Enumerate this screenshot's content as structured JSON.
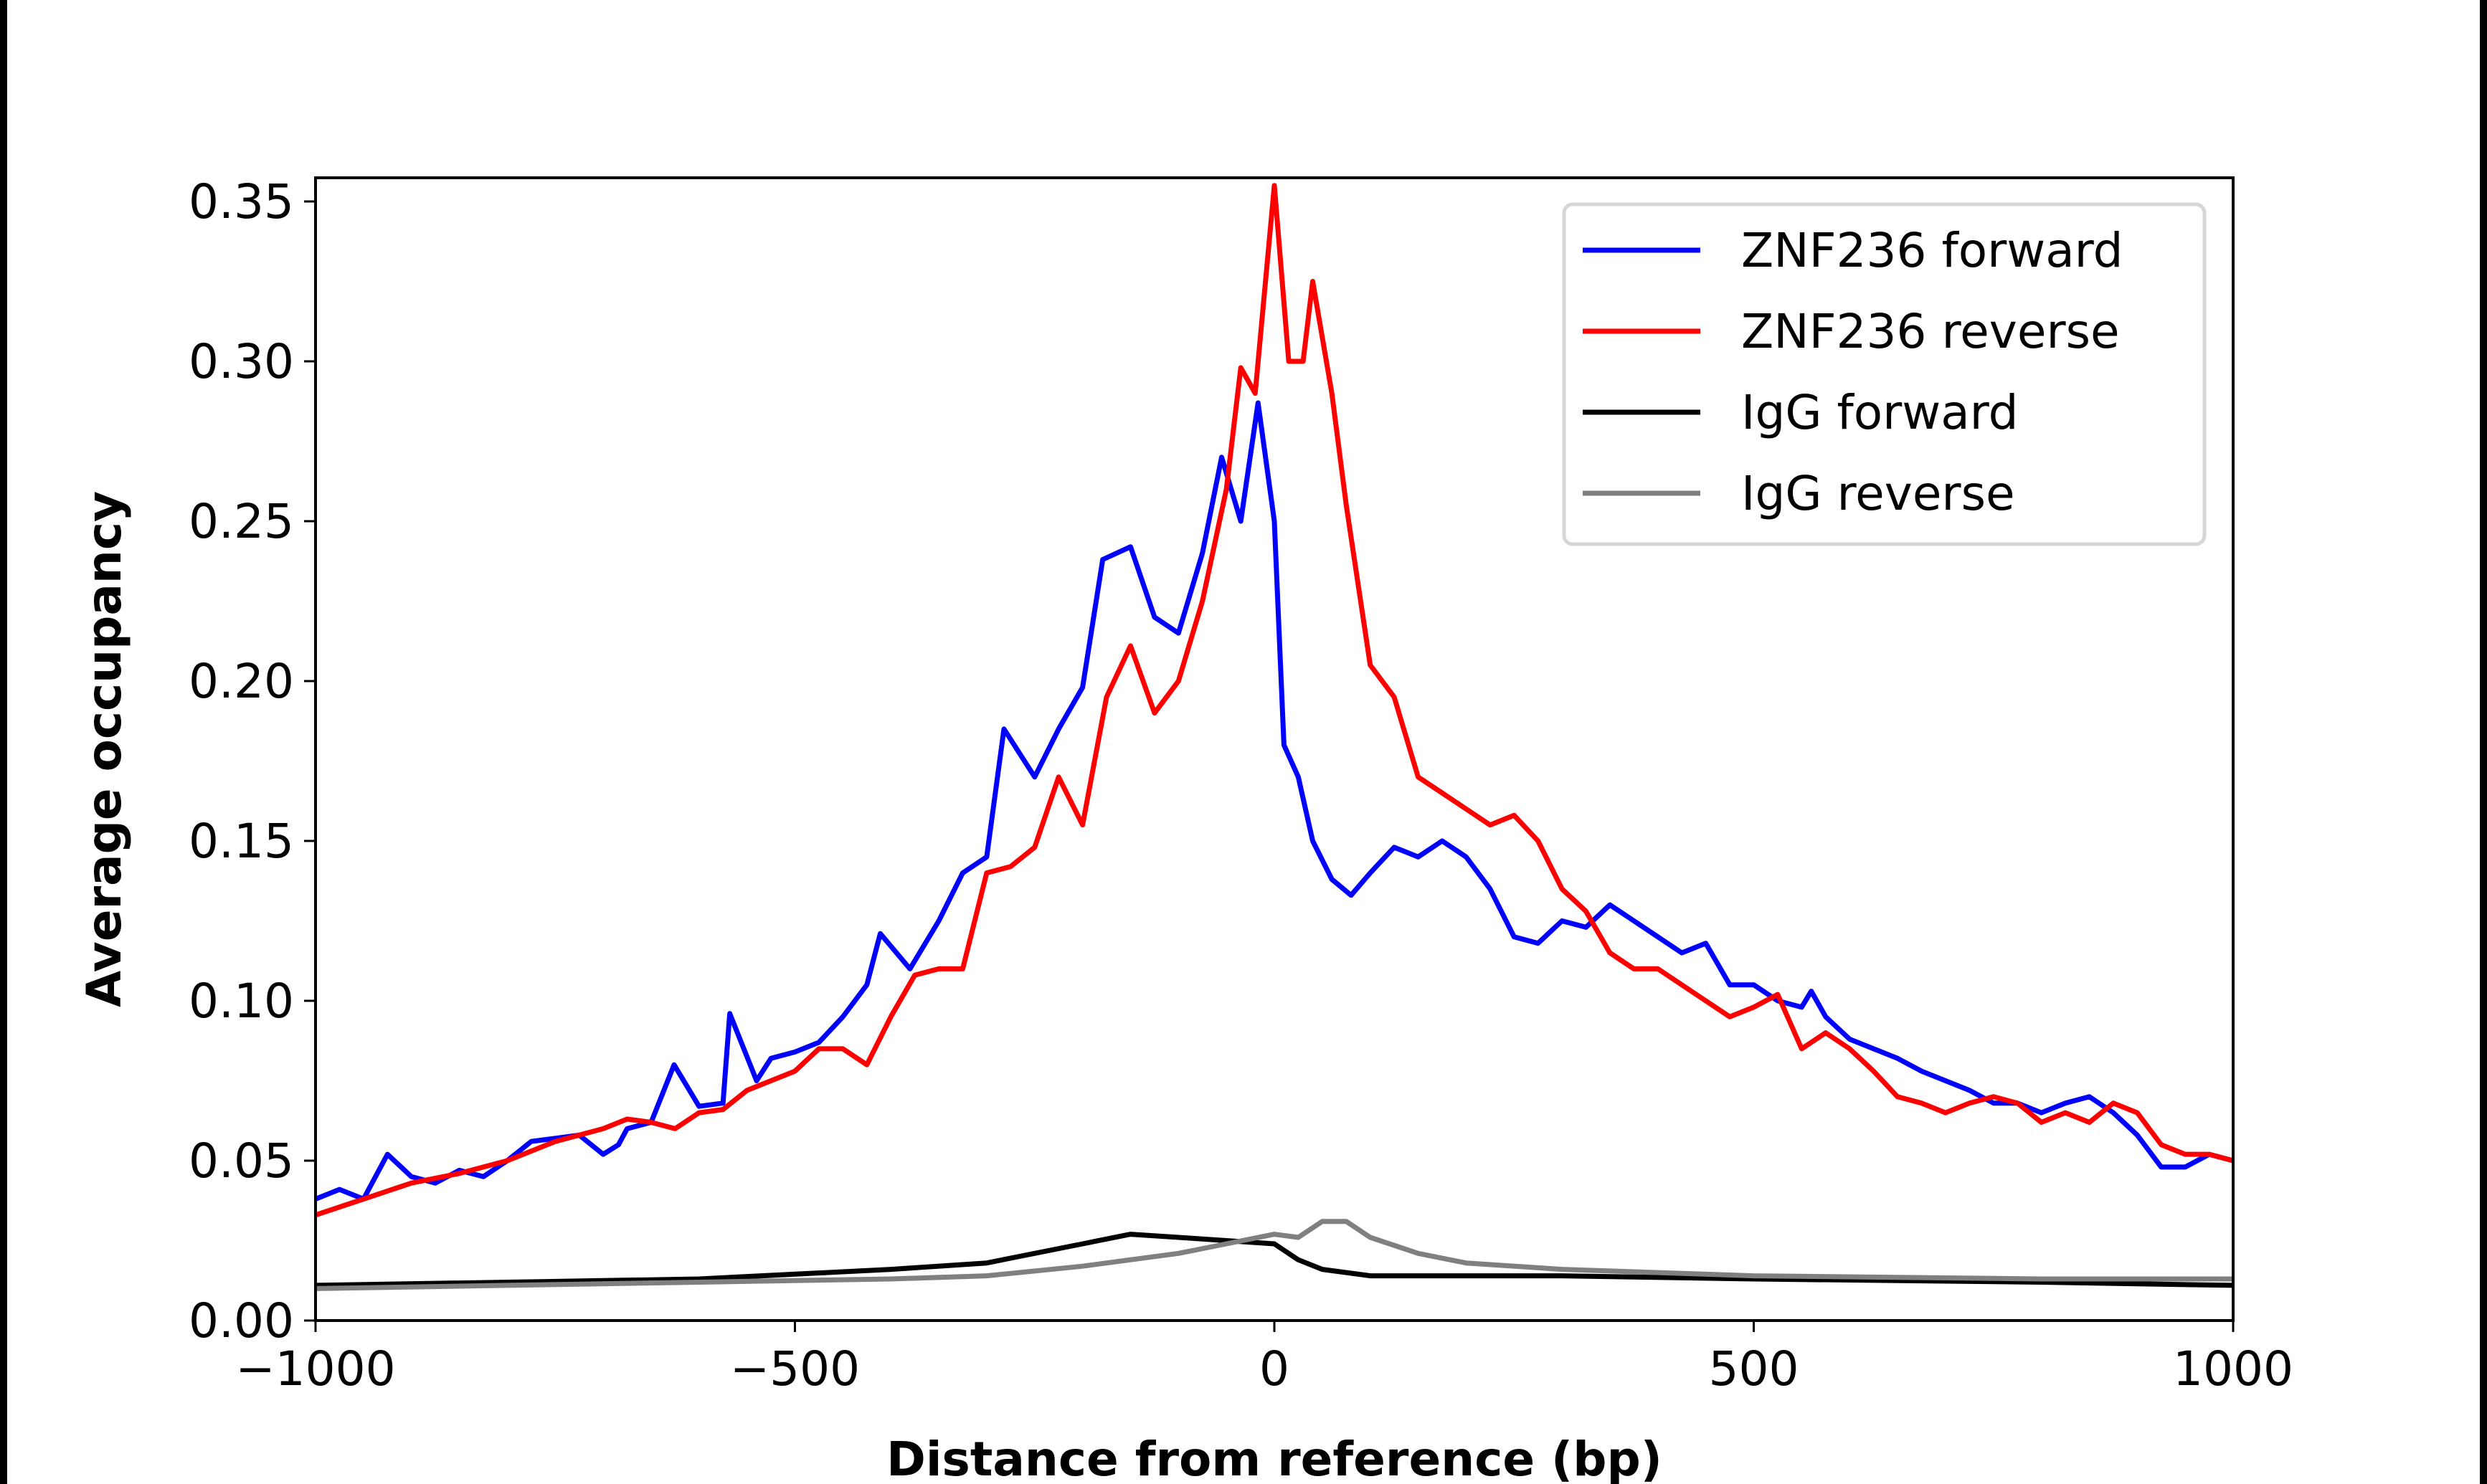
{
  "chart_data": {
    "type": "line",
    "title": "",
    "xlabel": "Distance from reference (bp)",
    "ylabel": "Average occupancy",
    "xlim": [
      -1000,
      1000
    ],
    "ylim": [
      0,
      0.3574
    ],
    "xticks": [
      -1000,
      -500,
      0,
      500,
      1000
    ],
    "xtick_labels": [
      "−1000",
      "−500",
      "0",
      "500",
      "1000"
    ],
    "yticks": [
      0,
      0.05,
      0.1,
      0.15,
      0.2,
      0.25,
      0.3,
      0.35
    ],
    "ytick_labels": [
      "0.00",
      "0.05",
      "0.10",
      "0.15",
      "0.20",
      "0.25",
      "0.30",
      "0.35"
    ],
    "grid": false,
    "legend_position": "top-right",
    "series": [
      {
        "name": "ZNF236 forward",
        "color": "#0000ff",
        "x": [
          -1000,
          -975,
          -950,
          -925,
          -900,
          -875,
          -850,
          -825,
          -800,
          -775,
          -750,
          -725,
          -700,
          -684,
          -675,
          -650,
          -626,
          -600,
          -575,
          -568,
          -540,
          -525,
          -500,
          -475,
          -450,
          -425,
          -411,
          -380,
          -350,
          -325,
          -300,
          -282,
          -250,
          -225,
          -200,
          -179,
          -150,
          -125,
          -100,
          -75,
          -55,
          -35,
          -17,
          0,
          10,
          25,
          40,
          60,
          80,
          100,
          125,
          150,
          175,
          200,
          225,
          250,
          275,
          300,
          325,
          350,
          375,
          400,
          425,
          450,
          475,
          500,
          525,
          550,
          560,
          575,
          600,
          625,
          650,
          675,
          700,
          725,
          750,
          775,
          800,
          825,
          850,
          875,
          900,
          925,
          950,
          975,
          1000
        ],
        "y": [
          0.038,
          0.041,
          0.038,
          0.052,
          0.045,
          0.043,
          0.047,
          0.045,
          0.05,
          0.056,
          0.057,
          0.058,
          0.052,
          0.055,
          0.06,
          0.062,
          0.08,
          0.067,
          0.068,
          0.096,
          0.075,
          0.082,
          0.084,
          0.087,
          0.095,
          0.105,
          0.121,
          0.11,
          0.125,
          0.14,
          0.145,
          0.185,
          0.17,
          0.185,
          0.198,
          0.238,
          0.242,
          0.22,
          0.215,
          0.24,
          0.27,
          0.25,
          0.287,
          0.25,
          0.18,
          0.17,
          0.15,
          0.138,
          0.133,
          0.14,
          0.148,
          0.145,
          0.15,
          0.145,
          0.135,
          0.12,
          0.118,
          0.125,
          0.123,
          0.13,
          0.125,
          0.12,
          0.115,
          0.118,
          0.105,
          0.105,
          0.1,
          0.098,
          0.103,
          0.095,
          0.088,
          0.085,
          0.082,
          0.078,
          0.075,
          0.072,
          0.068,
          0.068,
          0.065,
          0.068,
          0.07,
          0.065,
          0.058,
          0.048,
          0.048,
          0.052,
          0.05
        ]
      },
      {
        "name": "ZNF236 reverse",
        "color": "#ff0000",
        "x": [
          -1000,
          -950,
          -900,
          -850,
          -800,
          -750,
          -700,
          -675,
          -650,
          -625,
          -600,
          -575,
          -550,
          -500,
          -475,
          -450,
          -425,
          -400,
          -375,
          -350,
          -325,
          -300,
          -275,
          -250,
          -225,
          -200,
          -175,
          -150,
          -125,
          -100,
          -75,
          -50,
          -35,
          -20,
          0,
          15,
          30,
          40,
          60,
          75,
          100,
          125,
          150,
          175,
          200,
          225,
          250,
          275,
          300,
          325,
          350,
          375,
          400,
          450,
          475,
          500,
          525,
          550,
          575,
          600,
          625,
          650,
          675,
          700,
          725,
          750,
          775,
          800,
          825,
          850,
          875,
          900,
          925,
          950,
          975,
          1000
        ],
        "y": [
          0.033,
          0.038,
          0.043,
          0.046,
          0.05,
          0.056,
          0.06,
          0.063,
          0.062,
          0.06,
          0.065,
          0.066,
          0.072,
          0.078,
          0.085,
          0.085,
          0.08,
          0.095,
          0.108,
          0.11,
          0.11,
          0.14,
          0.142,
          0.148,
          0.17,
          0.155,
          0.195,
          0.211,
          0.19,
          0.2,
          0.225,
          0.26,
          0.298,
          0.29,
          0.355,
          0.3,
          0.3,
          0.325,
          0.29,
          0.255,
          0.205,
          0.195,
          0.17,
          0.165,
          0.16,
          0.155,
          0.158,
          0.15,
          0.135,
          0.128,
          0.115,
          0.11,
          0.11,
          0.1,
          0.095,
          0.098,
          0.102,
          0.085,
          0.09,
          0.085,
          0.078,
          0.07,
          0.068,
          0.065,
          0.068,
          0.07,
          0.068,
          0.062,
          0.065,
          0.062,
          0.068,
          0.065,
          0.055,
          0.052,
          0.052,
          0.05
        ]
      },
      {
        "name": "IgG forward",
        "color": "#000000",
        "x": [
          -1000,
          -800,
          -600,
          -400,
          -300,
          -200,
          -150,
          -100,
          -50,
          0,
          25,
          50,
          100,
          200,
          300,
          500,
          800,
          1000
        ],
        "y": [
          0.011,
          0.012,
          0.013,
          0.016,
          0.018,
          0.024,
          0.027,
          0.026,
          0.025,
          0.024,
          0.019,
          0.016,
          0.014,
          0.014,
          0.014,
          0.013,
          0.012,
          0.011
        ]
      },
      {
        "name": "IgG reverse",
        "color": "#808080",
        "x": [
          -1000,
          -800,
          -600,
          -400,
          -300,
          -200,
          -100,
          -50,
          0,
          25,
          50,
          75,
          100,
          150,
          200,
          300,
          500,
          800,
          1000
        ],
        "y": [
          0.01,
          0.011,
          0.012,
          0.013,
          0.014,
          0.017,
          0.021,
          0.024,
          0.027,
          0.026,
          0.031,
          0.031,
          0.026,
          0.021,
          0.018,
          0.016,
          0.014,
          0.013,
          0.013
        ]
      }
    ]
  }
}
